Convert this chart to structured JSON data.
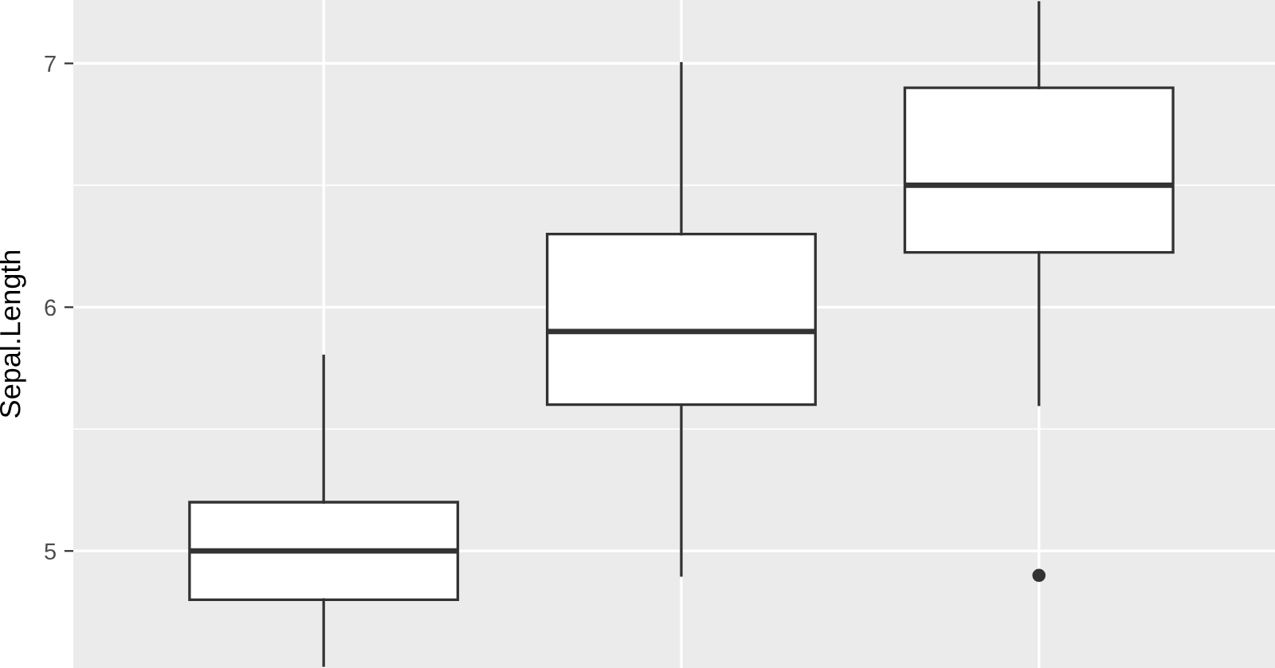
{
  "chart_data": {
    "type": "box",
    "ylabel": "Sepal.Length",
    "categories": [
      null,
      null,
      null
    ],
    "boxes": [
      {
        "low": 4.53,
        "q1": 4.8,
        "median": 5.0,
        "q3": 5.2,
        "high": 5.8
      },
      {
        "low": 4.9,
        "q1": 5.6,
        "median": 5.9,
        "q3": 6.3,
        "high": 7.0
      },
      {
        "low": 5.6,
        "q1": 6.225,
        "median": 6.5,
        "q3": 6.9,
        "high": 7.25,
        "outliers": [
          4.9
        ]
      }
    ],
    "ylim": [
      4.52,
      7.26
    ],
    "yticks": [
      5,
      {
        "value": 5.5,
        "label": null
      },
      6,
      {
        "value": 6.5,
        "label": null
      },
      7
    ],
    "grid": true,
    "tick_labels": "y"
  }
}
